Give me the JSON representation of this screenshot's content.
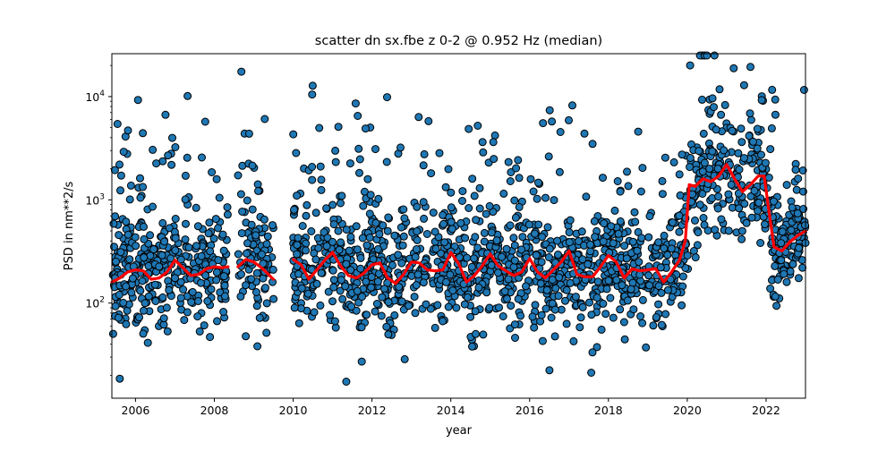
{
  "chart_data": {
    "type": "scatter",
    "title": "scatter dn sx.fbe z 0-2 @ 0.952 Hz (median)",
    "xlabel": "year",
    "ylabel": "PSD in nm**2/s",
    "xlim": [
      2005.4,
      2023.0
    ],
    "ylim": [
      12,
      26000
    ],
    "yscale": "log",
    "grid": false,
    "legend": "none",
    "x_ticks": [
      2006,
      2008,
      2010,
      2012,
      2014,
      2016,
      2018,
      2020,
      2022
    ],
    "x_tick_labels": [
      "2006",
      "2008",
      "2010",
      "2012",
      "2014",
      "2016",
      "2018",
      "2020",
      "2022"
    ],
    "y_ticks": [
      100,
      1000,
      10000
    ],
    "y_tick_labels": [
      "10^2",
      "10^3",
      "10^4"
    ],
    "colors": {
      "points_fill": "#1f77b4",
      "points_edge": "#000000",
      "median_line": "#ff0000"
    },
    "gaps": [
      [
        2008.35,
        2008.6
      ],
      [
        2009.52,
        2010.0
      ]
    ],
    "data_end": 2023.0,
    "series": [
      {
        "name": "median",
        "style": "line",
        "x": [
          2005.4,
          2005.6,
          2005.8,
          2006.0,
          2006.2,
          2006.4,
          2006.6,
          2006.8,
          2007.0,
          2007.2,
          2007.4,
          2007.6,
          2007.8,
          2008.0,
          2008.2,
          2008.35,
          2008.6,
          2008.8,
          2009.0,
          2009.2,
          2009.5,
          2010.0,
          2010.2,
          2010.4,
          2010.6,
          2010.8,
          2011.0,
          2011.2,
          2011.4,
          2011.6,
          2011.8,
          2012.0,
          2012.2,
          2012.4,
          2012.6,
          2012.8,
          2013.0,
          2013.2,
          2013.4,
          2013.6,
          2013.8,
          2014.0,
          2014.2,
          2014.4,
          2014.6,
          2014.8,
          2015.0,
          2015.2,
          2015.4,
          2015.6,
          2015.8,
          2016.0,
          2016.2,
          2016.4,
          2016.6,
          2016.8,
          2017.0,
          2017.2,
          2017.4,
          2017.6,
          2017.8,
          2018.0,
          2018.2,
          2018.4,
          2018.6,
          2018.8,
          2019.0,
          2019.2,
          2019.4,
          2019.6,
          2019.8,
          2019.95,
          2020.05,
          2020.2,
          2020.4,
          2020.6,
          2020.8,
          2021.0,
          2021.2,
          2021.4,
          2021.6,
          2021.8,
          2021.95,
          2022.1,
          2022.2,
          2022.4,
          2022.6,
          2022.8,
          2023.0
        ],
        "y": [
          160,
          175,
          200,
          210,
          205,
          170,
          175,
          200,
          260,
          220,
          185,
          190,
          215,
          225,
          220,
          225,
          225,
          265,
          250,
          220,
          170,
          265,
          235,
          170,
          210,
          260,
          310,
          230,
          185,
          175,
          195,
          235,
          245,
          175,
          155,
          190,
          250,
          245,
          210,
          205,
          210,
          310,
          240,
          160,
          185,
          230,
          300,
          230,
          205,
          185,
          200,
          270,
          200,
          175,
          210,
          250,
          320,
          190,
          180,
          180,
          225,
          290,
          250,
          175,
          215,
          205,
          210,
          215,
          160,
          200,
          260,
          400,
          1400,
          1350,
          1600,
          1500,
          1700,
          2200,
          1600,
          1200,
          1400,
          1700,
          1700,
          650,
          350,
          320,
          390,
          450,
          500
        ]
      }
    ]
  }
}
